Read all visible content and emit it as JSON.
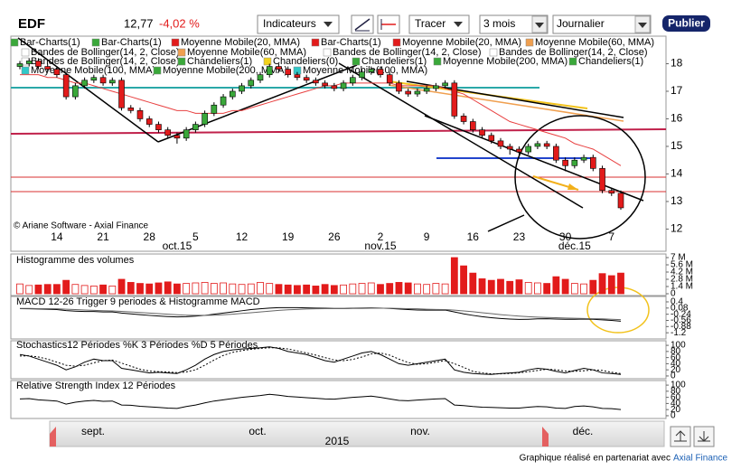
{
  "toolbar": {
    "symbol": "EDF",
    "price": "12,77",
    "change": "-4,02 %",
    "indicators": "Indicateurs",
    "draw": "Tracer",
    "period": "3 mois",
    "interval": "Journalier",
    "publish": "Publier"
  },
  "chart_data": [
    {
      "type": "candlestick",
      "categories": [
        null,
        null,
        null,
        null,
        "14",
        null,
        null,
        null,
        null,
        "21",
        null,
        null,
        null,
        null,
        "28",
        null,
        null,
        null,
        null,
        "5",
        null,
        null,
        null,
        null,
        "12",
        null,
        null,
        null,
        null,
        "19",
        null,
        null,
        null,
        null,
        "26",
        null,
        null,
        null,
        null,
        "2",
        null,
        null,
        null,
        null,
        "9",
        null,
        null,
        null,
        null,
        "16",
        null,
        null,
        null,
        null,
        "23",
        null,
        null,
        null,
        null,
        "30",
        null,
        null,
        null,
        null,
        "7",
        null
      ],
      "month_labels": [
        "oct.15",
        "nov.15",
        "déc.15"
      ],
      "open": [
        17.9,
        18.0,
        18.1,
        17.9,
        17.8,
        17.6,
        16.8,
        17.2,
        17.4,
        17.5,
        17.3,
        17.4,
        16.4,
        16.3,
        16.0,
        15.8,
        15.6,
        15.4,
        15.3,
        15.6,
        15.8,
        16.2,
        16.5,
        16.8,
        17.0,
        17.2,
        17.4,
        17.6,
        17.9,
        17.8,
        17.6,
        17.5,
        17.4,
        17.3,
        17.2,
        17.1,
        17.3,
        17.5,
        17.7,
        17.8,
        17.6,
        17.3,
        17.0,
        16.9,
        17.0,
        17.1,
        17.2,
        17.3,
        16.1,
        15.9,
        15.6,
        15.4,
        15.2,
        15.0,
        14.9,
        14.8,
        15.0,
        15.1,
        15.0,
        14.5,
        14.3,
        14.5,
        14.6,
        14.2,
        13.4,
        13.3
      ],
      "high": [
        18.1,
        18.2,
        18.2,
        18.0,
        17.9,
        17.7,
        17.3,
        17.5,
        17.6,
        17.6,
        17.5,
        17.5,
        16.5,
        16.4,
        16.1,
        15.9,
        15.7,
        15.5,
        15.7,
        15.9,
        16.3,
        16.6,
        16.9,
        17.1,
        17.3,
        17.5,
        17.7,
        18.0,
        18.0,
        17.9,
        17.7,
        17.6,
        17.5,
        17.4,
        17.3,
        17.4,
        17.6,
        17.8,
        17.9,
        17.9,
        17.7,
        17.4,
        17.1,
        17.1,
        17.2,
        17.3,
        17.4,
        17.4,
        16.2,
        16.0,
        15.7,
        15.5,
        15.3,
        15.1,
        15.0,
        15.1,
        15.2,
        15.2,
        15.1,
        14.6,
        14.6,
        14.7,
        14.7,
        14.3,
        13.5,
        13.4
      ],
      "low": [
        17.8,
        17.9,
        17.8,
        17.7,
        17.5,
        16.7,
        16.7,
        17.1,
        17.3,
        17.2,
        17.2,
        16.3,
        16.2,
        15.9,
        15.7,
        15.5,
        15.3,
        15.1,
        15.2,
        15.5,
        15.7,
        16.1,
        16.4,
        16.7,
        16.9,
        17.1,
        17.3,
        17.5,
        17.7,
        17.5,
        17.4,
        17.3,
        17.2,
        17.1,
        17.0,
        17.0,
        17.2,
        17.4,
        17.6,
        17.5,
        17.2,
        16.9,
        16.8,
        16.8,
        16.9,
        17.0,
        17.1,
        16.0,
        15.8,
        15.5,
        15.3,
        15.1,
        14.9,
        14.7,
        14.6,
        14.7,
        14.9,
        14.9,
        14.4,
        14.1,
        14.2,
        14.4,
        14.1,
        13.3,
        13.2,
        12.7
      ],
      "close": [
        18.0,
        18.1,
        17.9,
        17.8,
        17.6,
        16.8,
        17.2,
        17.4,
        17.5,
        17.3,
        17.4,
        16.4,
        16.3,
        16.0,
        15.8,
        15.6,
        15.4,
        15.3,
        15.6,
        15.8,
        16.2,
        16.5,
        16.8,
        17.0,
        17.2,
        17.4,
        17.6,
        17.9,
        17.8,
        17.6,
        17.5,
        17.4,
        17.3,
        17.2,
        17.1,
        17.3,
        17.5,
        17.7,
        17.8,
        17.6,
        17.3,
        17.0,
        16.9,
        17.0,
        17.1,
        17.2,
        17.3,
        16.1,
        15.9,
        15.6,
        15.4,
        15.2,
        15.0,
        14.9,
        14.8,
        15.0,
        15.1,
        15.0,
        14.5,
        14.3,
        14.5,
        14.6,
        14.2,
        13.4,
        13.3,
        12.77
      ],
      "up_color": "#3aa83a",
      "down_color": "#e21b1b",
      "overlay": {
        "color": "#e84040",
        "values": [
          17.6,
          17.6,
          17.6,
          17.5,
          17.5,
          17.4,
          17.3,
          17.3,
          17.2,
          17.1,
          17.0,
          16.9,
          16.8,
          16.7,
          16.6,
          16.5,
          16.4,
          16.3,
          16.3,
          16.2,
          16.2,
          16.2,
          16.2,
          16.3,
          16.3,
          16.4,
          16.5,
          16.6,
          16.7,
          16.8,
          16.9,
          17.0,
          17.1,
          17.2,
          17.2,
          17.3,
          17.3,
          17.3,
          17.3,
          17.3,
          17.3,
          17.2,
          17.2,
          17.2,
          17.2,
          17.2,
          17.1,
          17.0,
          16.9,
          16.7,
          16.5,
          16.3,
          16.1,
          15.9,
          15.8,
          15.7,
          15.6,
          15.5,
          15.4,
          15.3,
          15.1,
          15.0,
          14.9,
          14.7,
          14.5,
          14.3
        ]
      },
      "legend": [
        {
          "text": "Bar-Charts(1)",
          "color": "#3aa83a"
        },
        {
          "text": "Bar-Charts(1)",
          "color": "#3aa83a"
        },
        {
          "text": "Moyenne Mobile(20, MMA)",
          "color": "#e21b1b"
        },
        {
          "text": "Bar-Charts(1)",
          "color": "#e21b1b"
        },
        {
          "text": "Moyenne Mobile(20, MMA)",
          "color": "#e21b1b"
        },
        {
          "text": "Moyenne Mobile(60, MMA)",
          "color": "#f0a050"
        },
        {
          "text": "Bandes de Bollinger(14, 2, Close)",
          "color": "#ffffff"
        },
        {
          "text": "Moyenne Mobile(60, MMA)",
          "color": "#f0a050"
        },
        {
          "text": "Bandes de Bollinger(14, 2, Close)",
          "color": "#ffffff"
        },
        {
          "text": "Bandes de Bollinger(14, 2, Close)",
          "color": "#ffffff"
        },
        {
          "text": "Bandes de Bollinger(14, 2, Close)",
          "color": "#ffffff"
        },
        {
          "text": "Chandeliers(1)",
          "color": "#3aa83a"
        },
        {
          "text": "Chandeliers(0)",
          "color": "#f2d21b"
        },
        {
          "text": "Chandeliers(1)",
          "color": "#3aa83a"
        },
        {
          "text": "Moyenne Mobile(200, MMA)",
          "color": "#3aa83a"
        },
        {
          "text": "Chandeliers(1)",
          "color": "#3aa83a"
        },
        {
          "text": "Moyenne Mobile(100, MMA)",
          "color": "#30c8c8"
        },
        {
          "text": "Moyenne Mobile(200, MMA)",
          "color": "#3aa83a"
        },
        {
          "text": "Moyenne Mobile(100, MMA)",
          "color": "#30c8c8"
        }
      ],
      "watermark": "© Ariane Software - Axial Finance",
      "ylim": [
        11.85,
        19
      ],
      "yticks": [
        12,
        13,
        14,
        15,
        16,
        17,
        18
      ]
    },
    {
      "type": "bar",
      "title": "Histogramme des volumes",
      "color": "#e21b1b",
      "values": [
        1900000,
        1600000,
        1700000,
        1800000,
        1800000,
        2600000,
        1800000,
        1600000,
        1500000,
        1700000,
        1500000,
        2800000,
        2200000,
        2000000,
        1900000,
        2100000,
        2300000,
        1900000,
        2000000,
        2100000,
        2200000,
        2000000,
        2100000,
        1900000,
        1800000,
        1900000,
        2200000,
        2000000,
        1800000,
        1700000,
        1600000,
        1700000,
        1500000,
        1800000,
        1600000,
        1700000,
        1900000,
        2000000,
        2100000,
        1800000,
        2000000,
        2200000,
        2100000,
        1900000,
        1800000,
        2000000,
        1900000,
        7000000,
        5400000,
        4000000,
        2900000,
        2600000,
        2800000,
        2400000,
        2700000,
        2200000,
        2100000,
        2000000,
        3300000,
        2800000,
        2000000,
        1900000,
        2600000,
        3900000,
        3500000,
        4000000
      ],
      "ylim": [
        0,
        7000000
      ],
      "yticks": [
        {
          "value": 7000000,
          "label": "7 M"
        },
        {
          "value": 5600000,
          "label": "5.6 M"
        },
        {
          "value": 4200000,
          "label": "4.2 M"
        },
        {
          "value": 2800000,
          "label": "2.8 M"
        },
        {
          "value": 1400000,
          "label": "1.4 M"
        },
        0
      ]
    },
    {
      "type": "line",
      "title": "MACD 12-26   Trigger 9 periodes & Histogramme MACD",
      "series": [
        {
          "color": "#000000",
          "dash": false,
          "values": [
            0.05,
            0.04,
            0.03,
            0.02,
            0.0,
            -0.05,
            -0.08,
            -0.1,
            -0.1,
            -0.12,
            -0.12,
            -0.18,
            -0.22,
            -0.26,
            -0.3,
            -0.33,
            -0.36,
            -0.38,
            -0.37,
            -0.34,
            -0.3,
            -0.24,
            -0.18,
            -0.12,
            -0.06,
            0.0,
            0.04,
            0.08,
            0.1,
            0.1,
            0.1,
            0.09,
            0.08,
            0.07,
            0.06,
            0.06,
            0.07,
            0.08,
            0.09,
            0.08,
            0.06,
            0.03,
            0.0,
            -0.02,
            -0.03,
            -0.03,
            -0.02,
            -0.12,
            -0.22,
            -0.3,
            -0.37,
            -0.42,
            -0.46,
            -0.49,
            -0.51,
            -0.5,
            -0.48,
            -0.47,
            -0.49,
            -0.5,
            -0.5,
            -0.49,
            -0.5,
            -0.53,
            -0.56,
            -0.6
          ]
        },
        {
          "color": "#666666",
          "dash": false,
          "values": [
            0.06,
            0.06,
            0.05,
            0.05,
            0.04,
            0.02,
            0.0,
            -0.02,
            -0.04,
            -0.06,
            -0.07,
            -0.09,
            -0.12,
            -0.15,
            -0.18,
            -0.21,
            -0.24,
            -0.27,
            -0.29,
            -0.3,
            -0.3,
            -0.29,
            -0.27,
            -0.24,
            -0.2,
            -0.16,
            -0.12,
            -0.08,
            -0.04,
            -0.01,
            0.01,
            0.03,
            0.04,
            0.05,
            0.05,
            0.05,
            0.06,
            0.06,
            0.07,
            0.07,
            0.07,
            0.06,
            0.05,
            0.04,
            0.02,
            0.01,
            0.0,
            -0.03,
            -0.07,
            -0.11,
            -0.16,
            -0.21,
            -0.26,
            -0.3,
            -0.34,
            -0.37,
            -0.39,
            -0.41,
            -0.42,
            -0.44,
            -0.45,
            -0.46,
            -0.47,
            -0.48,
            -0.5,
            -0.52
          ]
        }
      ],
      "ylim": [
        -1.52,
        0.68
      ],
      "yticks": [
        0.4,
        0.08,
        -0.24,
        -0.56,
        -0.88,
        -1.2
      ]
    },
    {
      "type": "line",
      "title": "Stochastics12 Périodes   %K 3 Périodes   %D 5 Périodes",
      "series": [
        {
          "color": "#000000",
          "dash": false,
          "values": [
            70,
            65,
            55,
            45,
            35,
            20,
            30,
            45,
            55,
            50,
            50,
            25,
            20,
            15,
            10,
            12,
            10,
            8,
            20,
            35,
            55,
            70,
            80,
            85,
            88,
            90,
            92,
            95,
            90,
            80,
            75,
            70,
            60,
            50,
            45,
            55,
            65,
            75,
            80,
            70,
            55,
            40,
            35,
            40,
            45,
            50,
            55,
            20,
            12,
            8,
            6,
            5,
            8,
            10,
            12,
            20,
            25,
            22,
            15,
            10,
            18,
            25,
            20,
            10,
            8,
            5
          ]
        },
        {
          "color": "#000000",
          "dash": true,
          "values": [
            65,
            66,
            62,
            55,
            45,
            35,
            32,
            35,
            43,
            50,
            52,
            42,
            32,
            22,
            16,
            14,
            13,
            11,
            13,
            20,
            35,
            52,
            67,
            77,
            83,
            87,
            90,
            92,
            92,
            88,
            82,
            75,
            68,
            60,
            52,
            50,
            54,
            62,
            72,
            75,
            68,
            55,
            44,
            38,
            40,
            45,
            50,
            40,
            28,
            15,
            10,
            7,
            7,
            8,
            10,
            14,
            18,
            22,
            20,
            16,
            15,
            17,
            20,
            18,
            12,
            8
          ]
        }
      ],
      "ylim": [
        -9,
        115
      ],
      "yticks": [
        100,
        80,
        60,
        40,
        20,
        0
      ]
    },
    {
      "type": "line",
      "title": "Relative Strength Index 12 Périodes",
      "series": [
        {
          "color": "#000000",
          "dash": false,
          "values": [
            55,
            56,
            52,
            50,
            48,
            38,
            44,
            48,
            50,
            47,
            48,
            35,
            34,
            31,
            29,
            27,
            25,
            24,
            30,
            35,
            42,
            48,
            52,
            56,
            60,
            63,
            66,
            70,
            67,
            63,
            61,
            59,
            57,
            55,
            54,
            57,
            60,
            62,
            64,
            60,
            55,
            50,
            49,
            51,
            53,
            55,
            56,
            35,
            33,
            30,
            28,
            27,
            26,
            25,
            25,
            28,
            30,
            29,
            25,
            24,
            30,
            32,
            29,
            24,
            23,
            20
          ]
        }
      ],
      "ylim": [
        -9,
        115
      ],
      "yticks": [
        100,
        80,
        60,
        40,
        20,
        0
      ]
    }
  ],
  "navigator": {
    "months": [
      "sept.",
      "oct.",
      "nov.",
      "déc."
    ],
    "year": "2015"
  },
  "footer": {
    "text": "Graphique réalisé en partenariat avec",
    "link": "Axial Finance"
  }
}
